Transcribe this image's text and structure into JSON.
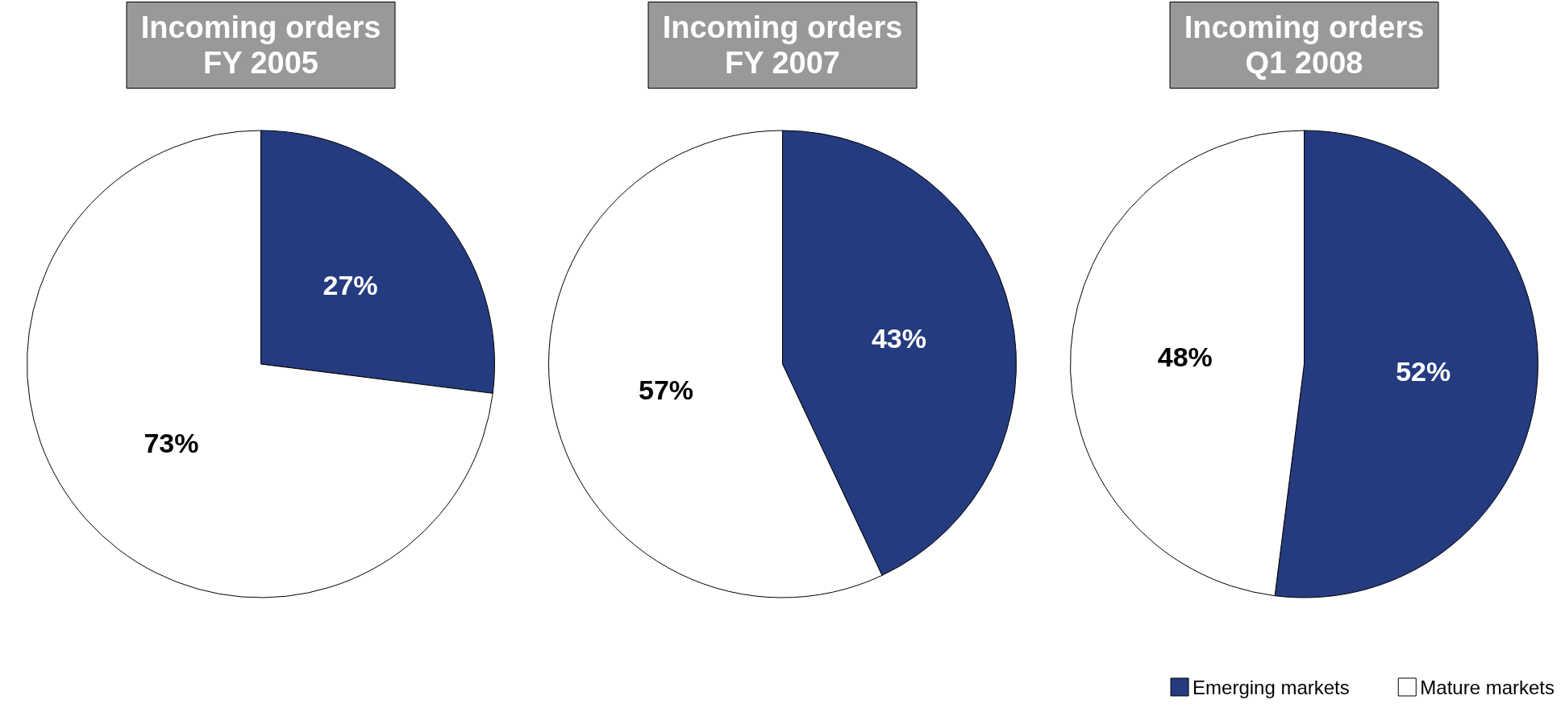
{
  "chart_data": [
    {
      "type": "pie",
      "title": "Incoming orders\nFY 2005",
      "categories": [
        null,
        null
      ],
      "values": [
        27,
        73
      ],
      "colors": [
        "#253b80",
        "#ffffff"
      ],
      "value_labels": [
        "27%",
        "73%"
      ],
      "legend": false
    },
    {
      "type": "pie",
      "title": "Incoming orders\nFY 2007",
      "categories": [
        null,
        null
      ],
      "values": [
        43,
        57
      ],
      "colors": [
        "#253b80",
        "#ffffff"
      ],
      "value_labels": [
        "43%",
        "57%"
      ],
      "legend": false
    },
    {
      "type": "pie",
      "title": "Incoming orders\nQ1 2008",
      "categories": [
        "Emerging markets",
        "Mature markets"
      ],
      "values": [
        52,
        48
      ],
      "colors": [
        "#253b80",
        "#ffffff"
      ],
      "value_labels": [
        "52%",
        "48%"
      ],
      "legend": "bottom right"
    }
  ]
}
